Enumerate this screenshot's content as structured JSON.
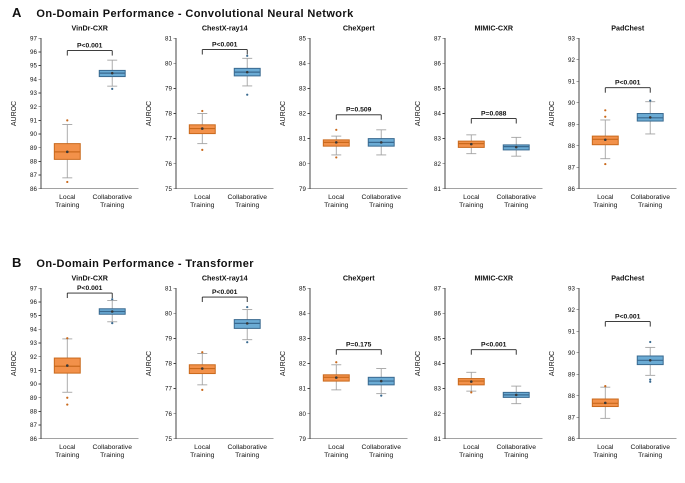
{
  "figure": {
    "y_axis_label": "AUROC",
    "categories": [
      [
        "Local",
        "Training"
      ],
      [
        "Collaborative",
        "Training"
      ]
    ],
    "colors": {
      "local_fill": "#F2914A",
      "local_edge": "#C9691C",
      "collab_fill": "#6BABD4",
      "collab_edge": "#39698F",
      "whisker": "#A3A3A3",
      "mean_marker": "#3A3A3A",
      "axis": "#444444",
      "bracket": "#222222"
    }
  },
  "chart_data": [
    {
      "type": "boxplot",
      "panel": "A",
      "title": "On-Domain Performance  - Convolutional Neural Network",
      "ylabel": "AUROC",
      "legend": [
        "Local Training",
        "Collaborative Training"
      ],
      "subplots": [
        {
          "title": "VinDr-CXR",
          "ylim": [
            86,
            97
          ],
          "ystep": 1,
          "p_label": "P<0.001",
          "p_y": 96.1,
          "boxes": [
            {
              "series": "Local Training",
              "whislo": 86.8,
              "q1": 88.15,
              "med": 88.7,
              "q3": 89.3,
              "whishi": 90.7,
              "mean": 88.7,
              "fliers": [
                91.0,
                86.5
              ]
            },
            {
              "series": "Collaborative Training",
              "whislo": 93.5,
              "q1": 94.2,
              "med": 94.45,
              "q3": 94.65,
              "whishi": 95.4,
              "mean": 94.45,
              "fliers": [
                93.3
              ]
            }
          ]
        },
        {
          "title": "ChestX-ray14",
          "ylim": [
            75,
            81
          ],
          "ystep": 1,
          "p_label": "P<0.001",
          "p_y": 80.55,
          "boxes": [
            {
              "series": "Local Training",
              "whislo": 76.8,
              "q1": 77.2,
              "med": 77.4,
              "q3": 77.55,
              "whishi": 78.0,
              "mean": 77.4,
              "fliers": [
                78.1,
                76.55
              ]
            },
            {
              "series": "Collaborative Training",
              "whislo": 79.1,
              "q1": 79.5,
              "med": 79.65,
              "q3": 79.8,
              "whishi": 80.2,
              "mean": 79.65,
              "fliers": [
                80.3,
                78.75
              ]
            }
          ]
        },
        {
          "title": "CheXpert",
          "ylim": [
            79,
            85
          ],
          "ystep": 1,
          "p_label": "P=0.509",
          "p_y": 81.95,
          "boxes": [
            {
              "series": "Local Training",
              "whislo": 80.35,
              "q1": 80.7,
              "med": 80.85,
              "q3": 80.95,
              "whishi": 81.1,
              "mean": 80.85,
              "fliers": [
                81.35,
                80.25
              ]
            },
            {
              "series": "Collaborative Training",
              "whislo": 80.35,
              "q1": 80.7,
              "med": 80.85,
              "q3": 81.0,
              "whishi": 81.35,
              "mean": 80.85,
              "fliers": []
            }
          ]
        },
        {
          "title": "MIMIC-CXR",
          "ylim": [
            81,
            87
          ],
          "ystep": 1,
          "p_label": "P=0.088",
          "p_y": 83.8,
          "boxes": [
            {
              "series": "Local Training",
              "whislo": 82.4,
              "q1": 82.65,
              "med": 82.8,
              "q3": 82.9,
              "whishi": 83.15,
              "mean": 82.78,
              "fliers": []
            },
            {
              "series": "Collaborative Training",
              "whislo": 82.3,
              "q1": 82.55,
              "med": 82.68,
              "q3": 82.75,
              "whishi": 83.05,
              "mean": 82.66,
              "fliers": []
            }
          ]
        },
        {
          "title": "PadChest",
          "ylim": [
            86,
            93
          ],
          "ystep": 1,
          "p_label": "P<0.001",
          "p_y": 90.7,
          "boxes": [
            {
              "series": "Local Training",
              "whislo": 87.4,
              "q1": 88.05,
              "med": 88.3,
              "q3": 88.45,
              "whishi": 89.2,
              "mean": 88.28,
              "fliers": [
                89.65,
                89.35,
                87.15
              ]
            },
            {
              "series": "Collaborative Training",
              "whislo": 88.55,
              "q1": 89.15,
              "med": 89.3,
              "q3": 89.5,
              "whishi": 90.05,
              "mean": 89.32,
              "fliers": [
                90.1
              ]
            }
          ]
        }
      ]
    },
    {
      "type": "boxplot",
      "panel": "B",
      "title": "On-Domain Performance  - Transformer",
      "ylabel": "AUROC",
      "legend": [
        "Local Training",
        "Collaborative Training"
      ],
      "subplots": [
        {
          "title": "VinDr-CXR",
          "ylim": [
            86,
            97
          ],
          "ystep": 1,
          "p_label": "P<0.001",
          "p_y": 96.65,
          "boxes": [
            {
              "series": "Local Training",
              "whislo": 89.4,
              "q1": 90.8,
              "med": 91.3,
              "q3": 91.9,
              "whishi": 93.3,
              "mean": 91.35,
              "fliers": [
                93.35,
                89.0,
                88.5
              ]
            },
            {
              "series": "Collaborative Training",
              "whislo": 94.55,
              "q1": 95.1,
              "med": 95.3,
              "q3": 95.5,
              "whishi": 96.1,
              "mean": 95.3,
              "fliers": [
                96.2,
                94.45
              ]
            }
          ]
        },
        {
          "title": "ChestX-ray14",
          "ylim": [
            75,
            81
          ],
          "ystep": 1,
          "p_label": "P<0.001",
          "p_y": 80.65,
          "boxes": [
            {
              "series": "Local Training",
              "whislo": 77.15,
              "q1": 77.6,
              "med": 77.8,
              "q3": 77.95,
              "whishi": 78.4,
              "mean": 77.8,
              "fliers": [
                78.45,
                76.95
              ]
            },
            {
              "series": "Collaborative Training",
              "whislo": 78.95,
              "q1": 79.4,
              "med": 79.6,
              "q3": 79.75,
              "whishi": 80.15,
              "mean": 79.6,
              "fliers": [
                80.25,
                78.85
              ]
            }
          ]
        },
        {
          "title": "CheXpert",
          "ylim": [
            79,
            85
          ],
          "ystep": 1,
          "p_label": "P=0.175",
          "p_y": 82.55,
          "boxes": [
            {
              "series": "Local Training",
              "whislo": 80.95,
              "q1": 81.3,
              "med": 81.45,
              "q3": 81.55,
              "whishi": 81.95,
              "mean": 81.44,
              "fliers": [
                82.05
              ]
            },
            {
              "series": "Collaborative Training",
              "whislo": 80.8,
              "q1": 81.15,
              "med": 81.3,
              "q3": 81.45,
              "whishi": 81.8,
              "mean": 81.3,
              "fliers": [
                80.72
              ]
            }
          ]
        },
        {
          "title": "MIMIC-CXR",
          "ylim": [
            81,
            87
          ],
          "ystep": 1,
          "p_label": "P<0.001",
          "p_y": 84.55,
          "boxes": [
            {
              "series": "Local Training",
              "whislo": 82.9,
              "q1": 83.15,
              "med": 83.3,
              "q3": 83.4,
              "whishi": 83.65,
              "mean": 83.28,
              "fliers": [
                82.85
              ]
            },
            {
              "series": "Collaborative Training",
              "whislo": 82.4,
              "q1": 82.65,
              "med": 82.75,
              "q3": 82.85,
              "whishi": 83.1,
              "mean": 82.75,
              "fliers": []
            }
          ]
        },
        {
          "title": "PadChest",
          "ylim": [
            86,
            93
          ],
          "ystep": 1,
          "p_label": "P<0.001",
          "p_y": 91.45,
          "boxes": [
            {
              "series": "Local Training",
              "whislo": 86.95,
              "q1": 87.5,
              "med": 87.65,
              "q3": 87.85,
              "whishi": 88.4,
              "mean": 87.67,
              "fliers": [
                88.45
              ]
            },
            {
              "series": "Collaborative Training",
              "whislo": 88.95,
              "q1": 89.45,
              "med": 89.65,
              "q3": 89.85,
              "whishi": 90.25,
              "mean": 89.65,
              "fliers": [
                90.5,
                88.75,
                88.65
              ]
            }
          ]
        }
      ]
    }
  ]
}
